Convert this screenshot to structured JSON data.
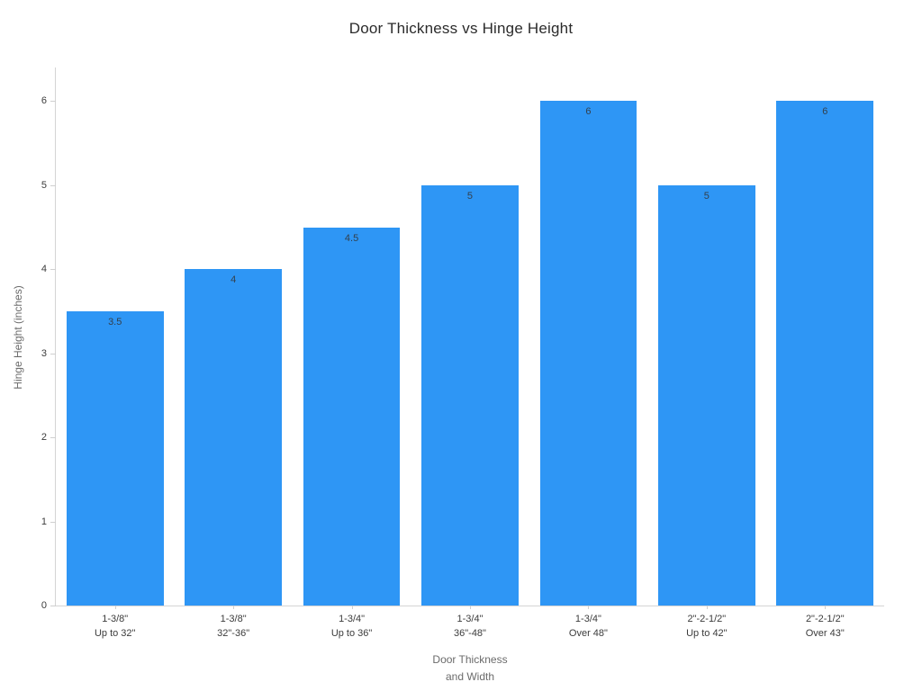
{
  "chart_data": {
    "type": "bar",
    "title": "Door Thickness vs Hinge Height",
    "xlabel": "Door Thickness\nand Width",
    "ylabel": "Hinge Height (inches)",
    "categories": [
      "1-3/8\"\nUp to 32\"",
      "1-3/8\"\n32\"-36\"",
      "1-3/4\"\nUp to 36\"",
      "1-3/4\"\n36\"-48\"",
      "1-3/4\"\nOver 48\"",
      "2\"-2-1/2\"\nUp to 42\"",
      "2\"-2-1/2\"\nOver 43\""
    ],
    "values": [
      3.5,
      4,
      4.5,
      5,
      6,
      5,
      6
    ],
    "value_labels": [
      "3.5",
      "4",
      "4.5",
      "5",
      "6",
      "5",
      "6"
    ],
    "yticks": [
      0,
      1,
      2,
      3,
      4,
      5,
      6
    ],
    "ylim": [
      0,
      6.4
    ],
    "grid": false,
    "legend": "none",
    "colors": {
      "bar": "#2E96F5",
      "bar_value_label": "#33404d",
      "axis_line": "#d4d4d4",
      "tick_label": "#3b3b3b",
      "title": "#2b2b2b",
      "axis_title": "#6b6b6b",
      "background": "#ffffff"
    }
  }
}
